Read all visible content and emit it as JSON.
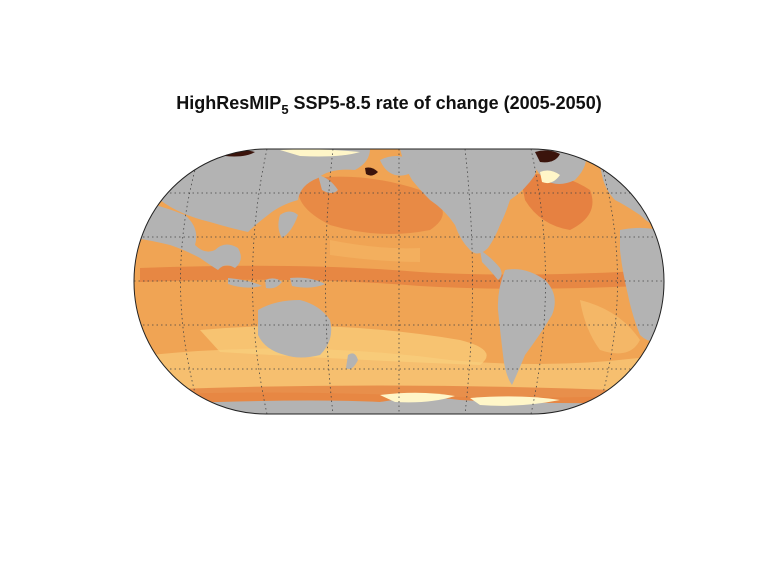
{
  "figure": {
    "title_main": "HighResMIP",
    "title_subscript": "5",
    "title_rest": " SSP5-8.5 rate of change (2005-2050)"
  },
  "map": {
    "projection": "Robinson (Pacific-centered)",
    "graticule": "dotted",
    "colors": {
      "land": "#b3b3b3",
      "ocean_base": "#f0a454",
      "ocean_high": "#e06a35",
      "ocean_low": "#f7c474",
      "extreme": "#3b140c",
      "ice": "#fff6c8"
    }
  }
}
